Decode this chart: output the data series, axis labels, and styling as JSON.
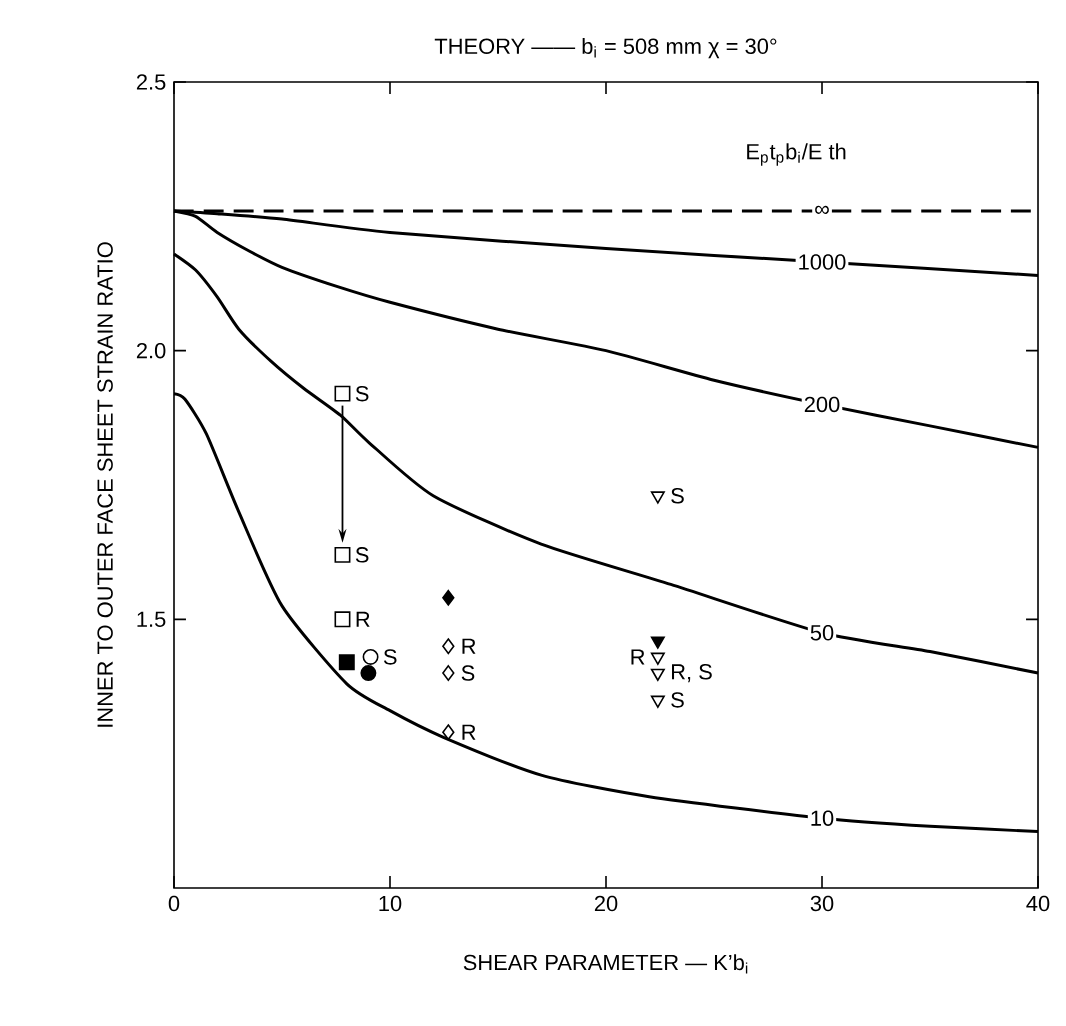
{
  "chart_data": {
    "type": "line",
    "title": "THEORY —— b$_{i}$ = 508 mm  χ = 30°",
    "xlabel": "SHEAR PARAMETER — K’b$_{i}$",
    "ylabel": "INNER TO OUTER FACE SHEET STRAIN RATIO",
    "legend_title": "E$_{p}$t$_{p}$b$_{i}$/E th",
    "xlim": [
      0,
      40
    ],
    "ylim": [
      1.0,
      2.5
    ],
    "xticks": [
      0,
      10,
      20,
      30,
      40
    ],
    "yticks": [
      1.5,
      {
        "value": 2.0,
        "label": "2.0"
      },
      2.5
    ],
    "grid": false,
    "series": [
      {
        "name": "∞",
        "color": "#000000",
        "line_style": "dashed",
        "x": [
          0,
          10,
          20,
          30,
          40
        ],
        "values": [
          2.26,
          2.26,
          2.26,
          2.26,
          2.26
        ]
      },
      {
        "name": "1000",
        "color": "#000000",
        "line_style": "solid",
        "x": [
          0,
          2,
          5,
          10,
          20,
          30,
          40
        ],
        "values": [
          2.26,
          2.255,
          2.245,
          2.22,
          2.19,
          2.165,
          2.14
        ]
      },
      {
        "name": "200",
        "color": "#000000",
        "line_style": "solid",
        "x": [
          0,
          1,
          2,
          3.5,
          5,
          7.5,
          10,
          15,
          20,
          25,
          30,
          35,
          40
        ],
        "values": [
          2.26,
          2.25,
          2.22,
          2.185,
          2.155,
          2.12,
          2.09,
          2.04,
          2.0,
          1.945,
          1.9,
          1.86,
          1.82
        ]
      },
      {
        "name": "50",
        "color": "#000000",
        "line_style": "solid",
        "x": [
          0,
          1,
          2,
          3,
          4.5,
          6,
          7.7,
          9,
          12,
          17,
          23,
          30,
          35,
          40
        ],
        "values": [
          2.18,
          2.15,
          2.1,
          2.04,
          1.98,
          1.93,
          1.88,
          1.83,
          1.73,
          1.64,
          1.565,
          1.475,
          1.44,
          1.4
        ]
      },
      {
        "name": "10",
        "color": "#000000",
        "line_style": "solid",
        "x": [
          0,
          0.5,
          1.5,
          3,
          5,
          8,
          10,
          12.5,
          17,
          22,
          30,
          35,
          40
        ],
        "values": [
          1.92,
          1.91,
          1.845,
          1.7,
          1.525,
          1.38,
          1.33,
          1.28,
          1.21,
          1.17,
          1.13,
          1.115,
          1.105
        ]
      },
      {
        "type": "scatter",
        "marker": "square",
        "color": "#ffffff",
        "x": [
          7.8,
          7.8,
          7.8
        ],
        "values": [
          1.92,
          1.62,
          1.5
        ]
      },
      {
        "type": "scatter",
        "marker": "square",
        "color": "#000000",
        "x": [
          8.0
        ],
        "values": [
          1.42
        ]
      },
      {
        "type": "scatter",
        "marker": "circle",
        "color": "#ffffff",
        "x": [
          9.1
        ],
        "values": [
          1.43
        ]
      },
      {
        "type": "scatter",
        "marker": "circle",
        "color": "#000000",
        "x": [
          9.0
        ],
        "values": [
          1.4
        ]
      },
      {
        "type": "scatter",
        "marker": "diamond",
        "color": "#000000",
        "x": [
          12.7
        ],
        "values": [
          1.54
        ]
      },
      {
        "type": "scatter",
        "marker": "diamond",
        "color": "#ffffff",
        "x": [
          12.7,
          12.7,
          12.7
        ],
        "values": [
          1.45,
          1.4,
          1.29
        ]
      },
      {
        "type": "scatter",
        "marker": "triangle",
        "color": "#ffffff",
        "x": [
          22.4,
          22.4,
          22.4,
          22.4
        ],
        "values": [
          1.73,
          1.43,
          1.4,
          1.35
        ]
      },
      {
        "type": "scatter",
        "marker": "triangle",
        "color": "#000000",
        "x": [
          22.4
        ],
        "values": [
          1.46
        ]
      }
    ],
    "annotations": [
      {
        "text": "S",
        "x": 7.8,
        "y": 1.92
      },
      {
        "text": "S",
        "x": 7.8,
        "y": 1.62
      },
      {
        "text": "R",
        "x": 7.8,
        "y": 1.5
      },
      {
        "text": "S",
        "x": 9.1,
        "y": 1.43
      },
      {
        "text": "S",
        "x": 12.7,
        "y": 1.4
      },
      {
        "text": "R",
        "x": 12.7,
        "y": 1.45
      },
      {
        "text": "R",
        "x": 12.7,
        "y": 1.29
      },
      {
        "text": "S",
        "x": 22.4,
        "y": 1.73
      },
      {
        "text": "R, S",
        "x": 22.4,
        "y": 1.4
      },
      {
        "text": "R",
        "x": 22.4,
        "y": 1.43
      },
      {
        "text": "S",
        "x": 22.4,
        "y": 1.35
      }
    ]
  }
}
